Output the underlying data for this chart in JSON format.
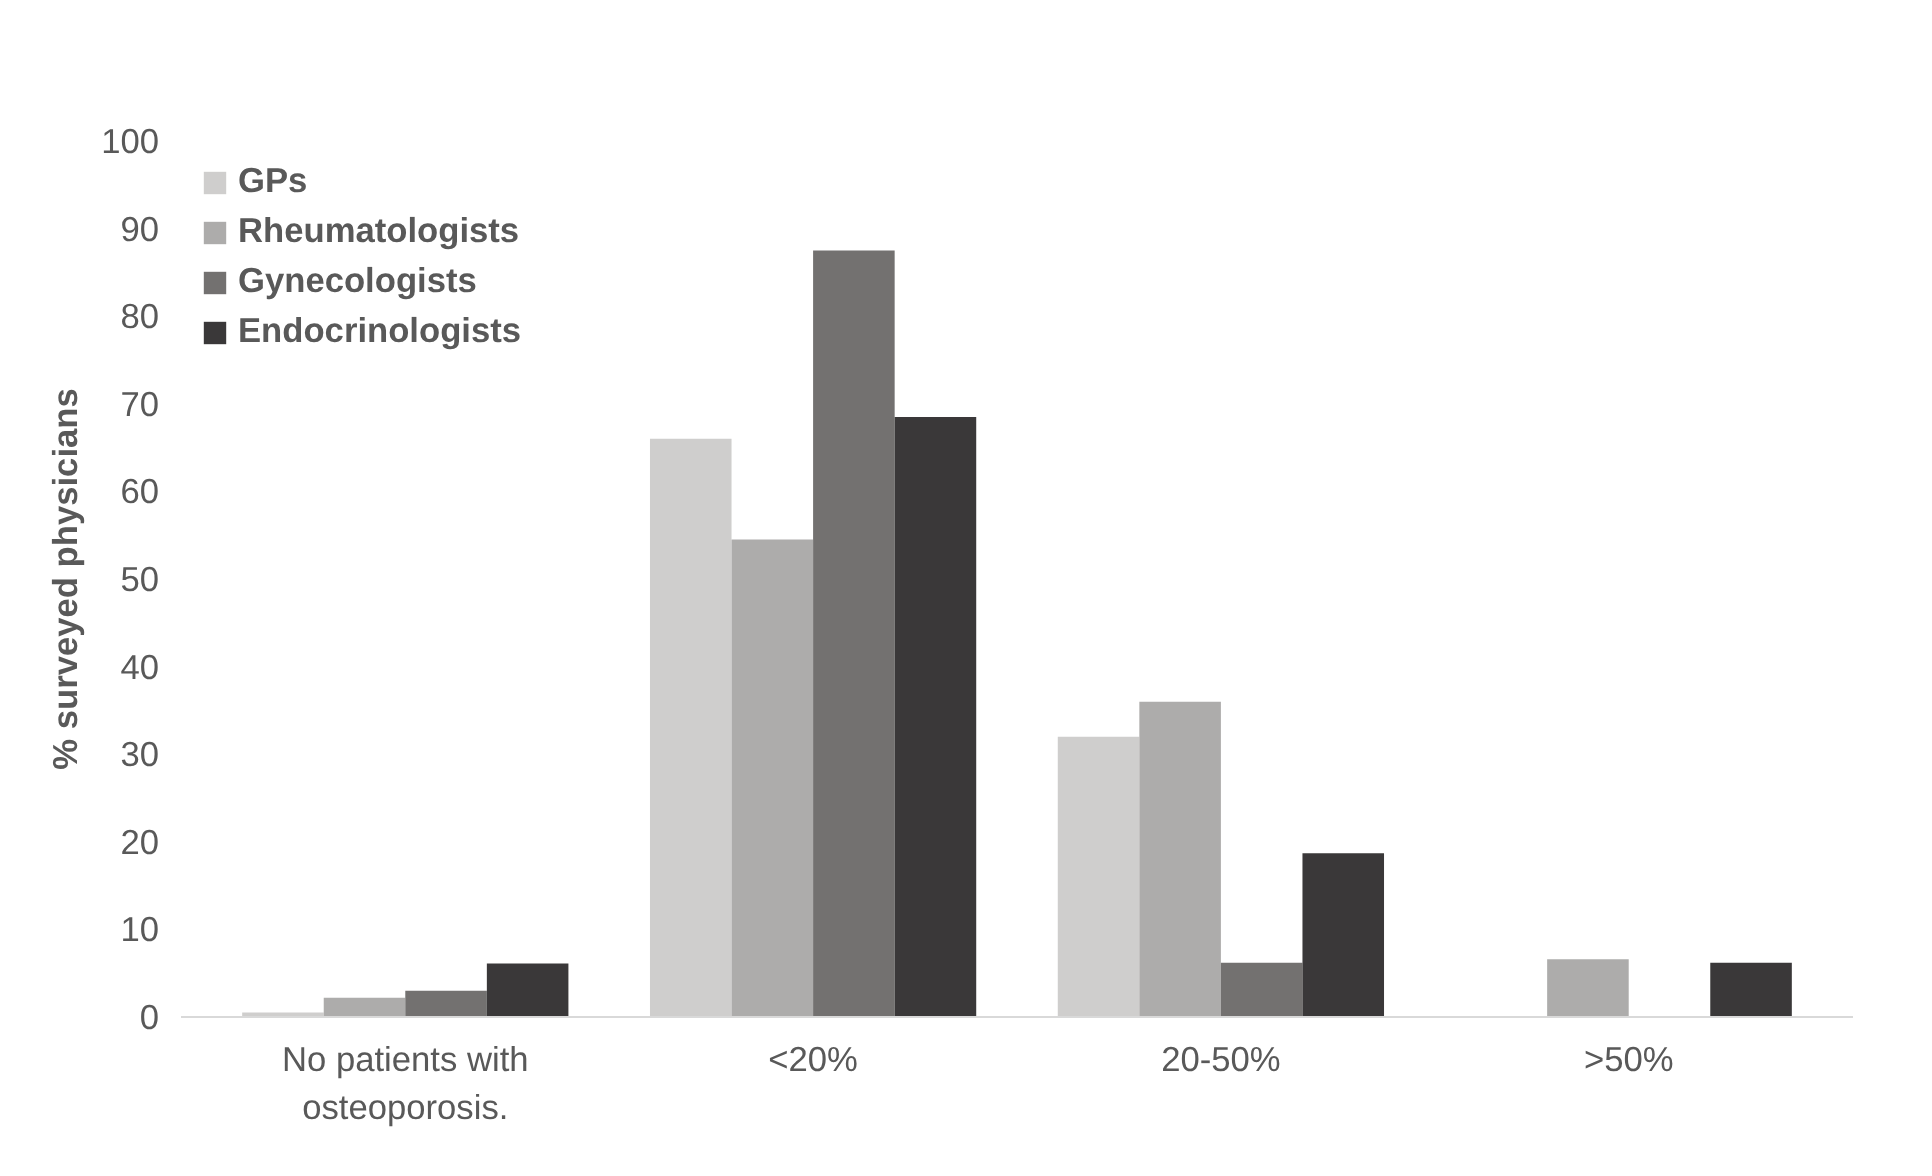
{
  "chart_data": {
    "type": "bar",
    "ylabel": "% surveyed physicians",
    "categories": [
      "No patients with osteoporosis.",
      "<20%",
      "20-50%",
      ">50%"
    ],
    "series": [
      {
        "name": "GPs",
        "color": "#cfcecd",
        "values": [
          0.5,
          66,
          32,
          0
        ]
      },
      {
        "name": "Rheumatologists",
        "color": "#adacab",
        "values": [
          2.2,
          54.5,
          36,
          6.6
        ]
      },
      {
        "name": "Gynecologists",
        "color": "#737170",
        "values": [
          3,
          87.5,
          6.2,
          0
        ]
      },
      {
        "name": "Endocrinologists",
        "color": "#3a3839",
        "values": [
          6.1,
          68.5,
          18.7,
          6.2
        ]
      }
    ],
    "ylim": [
      0,
      100
    ],
    "yticks": [
      0,
      10,
      20,
      30,
      40,
      50,
      60,
      70,
      80,
      90,
      100
    ],
    "grid": false,
    "legend": "top left"
  }
}
